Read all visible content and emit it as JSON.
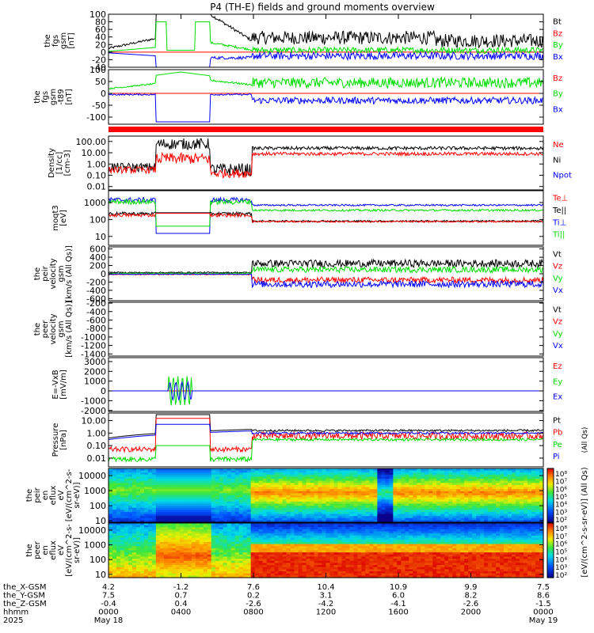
{
  "title": "P4 (TH-E) fields and ground moments overview",
  "colors": {
    "black": "#000000",
    "red": "#ff0000",
    "green": "#00dd00",
    "blue": "#0000ff"
  },
  "chart_data": {
    "type": "line",
    "x_axis": {
      "ticks": [
        "0000",
        "0400",
        "0800",
        "1200",
        "1600",
        "2000",
        "0000"
      ],
      "rows": [
        {
          "label": "the_X-GSM",
          "values": [
            "4.2",
            "-1.2",
            "7.6",
            "10.4",
            "10.9",
            "9.9",
            "7.5"
          ]
        },
        {
          "label": "the_Y-GSM",
          "values": [
            "7.5",
            "0.7",
            "0.2",
            "3.1",
            "6.0",
            "8.2",
            "8.6"
          ]
        },
        {
          "label": "the_Z-GSM",
          "values": [
            "-0.4",
            "0.4",
            "-2.6",
            "-4.2",
            "-4.1",
            "-2.6",
            "-1.5"
          ]
        }
      ],
      "hhmm_label": "hhmm",
      "year": "2025",
      "start_date": "May 18",
      "end_date": "May 19"
    },
    "panels": [
      {
        "id": "fgs",
        "ylabel": [
          "the",
          "fgs",
          "gsm",
          "[nT]"
        ],
        "ytick_labels": [
          "100",
          "80",
          "60",
          "40",
          "20",
          "0",
          "-20",
          "-40"
        ],
        "ylim": [
          -40,
          100
        ],
        "scale": "linear",
        "legend": [
          {
            "name": "Bt",
            "color": "#000000"
          },
          {
            "name": "Bz",
            "color": "#ff0000"
          },
          {
            "name": "By",
            "color": "#00dd00"
          },
          {
            "name": "Bx",
            "color": "#0000ff"
          }
        ]
      },
      {
        "id": "fgs-t89",
        "ylabel": [
          "the",
          "fgs",
          "gsm",
          "-t89",
          "[nT]"
        ],
        "ytick_labels": [
          "100",
          "50",
          "0",
          "-50",
          "-100"
        ],
        "ylim": [
          -130,
          100
        ],
        "scale": "linear",
        "legend": [
          {
            "name": "Bz",
            "color": "#ff0000"
          },
          {
            "name": "By",
            "color": "#00dd00"
          },
          {
            "name": "Bx",
            "color": "#0000ff"
          }
        ]
      },
      {
        "id": "density",
        "ylabel": [
          "Density",
          "[1/cc]",
          "[cm-3]"
        ],
        "ytick_labels": [
          "100.00",
          "10.00",
          "1.00",
          "0.10",
          "0.01"
        ],
        "ylim": [
          0.005,
          300
        ],
        "scale": "log",
        "legend": [
          {
            "name": "Ne",
            "color": "#ff0000"
          },
          {
            "name": "Ni",
            "color": "#000000"
          },
          {
            "name": "Npot",
            "color": "#0000ff"
          }
        ]
      },
      {
        "id": "temperature",
        "ylabel": [
          "moqt3",
          "[eV]"
        ],
        "ytick_labels": [
          "1000",
          "100",
          "10"
        ],
        "ylim": [
          3,
          5000
        ],
        "scale": "log",
        "legend": [
          {
            "name": "Te⊥",
            "color": "#ff0000"
          },
          {
            "name": "Te||",
            "color": "#000000"
          },
          {
            "name": "Ti⊥",
            "color": "#0000ff"
          },
          {
            "name": "Ti||",
            "color": "#00dd00"
          }
        ]
      },
      {
        "id": "peir-velocity",
        "ylabel": [
          "the",
          "peir",
          "velocity",
          "gsm",
          "[km/s (All Qs)]"
        ],
        "ytick_labels": [
          "600",
          "400",
          "200",
          "0",
          "-200",
          "-400",
          "-600"
        ],
        "ylim": [
          -650,
          650
        ],
        "scale": "linear",
        "legend": [
          {
            "name": "Vt",
            "color": "#000000"
          },
          {
            "name": "Vz",
            "color": "#ff0000"
          },
          {
            "name": "Vy",
            "color": "#00dd00"
          },
          {
            "name": "Vx",
            "color": "#0000ff"
          }
        ]
      },
      {
        "id": "peer-velocity",
        "ylabel": [
          "the",
          "peer",
          "velocity",
          "gsm",
          "[km/s (All Qs)]"
        ],
        "ytick_labels": [
          "-200",
          "-400",
          "-600",
          "-800",
          "-1000",
          "-1200",
          "-1400"
        ],
        "ylim": [
          -1450,
          -180
        ],
        "scale": "linear",
        "legend": [
          {
            "name": "Vt",
            "color": "#000000"
          },
          {
            "name": "Vz",
            "color": "#ff0000"
          },
          {
            "name": "Vy",
            "color": "#00dd00"
          },
          {
            "name": "Vx",
            "color": "#0000ff"
          }
        ]
      },
      {
        "id": "efield",
        "ylabel": [
          "E=-VxB",
          "[mV/m]"
        ],
        "ytick_labels": [
          "3000",
          "2000",
          "1000",
          "0",
          "-1000",
          "-2000"
        ],
        "ylim": [
          -2100,
          3400
        ],
        "scale": "linear",
        "legend": [
          {
            "name": "Ez",
            "color": "#ff0000"
          },
          {
            "name": "Ey",
            "color": "#00dd00"
          },
          {
            "name": "Ex",
            "color": "#0000ff"
          }
        ]
      },
      {
        "id": "pressure",
        "ylabel": [
          "Pressure",
          "[nPa]"
        ],
        "ytick_labels": [
          "10.00",
          "1.00",
          "0.10",
          "0.01"
        ],
        "ylim": [
          0.002,
          40
        ],
        "scale": "log",
        "legend": [
          {
            "name": "Pt",
            "color": "#000000"
          },
          {
            "name": "Pb",
            "color": "#ff0000"
          },
          {
            "name": "Pe",
            "color": "#00dd00"
          },
          {
            "name": "Pi",
            "color": "#0000ff"
          }
        ],
        "legend_side_note": "(All Qs)"
      },
      {
        "id": "peir-spec",
        "type": "heatmap",
        "ylabel": [
          "the",
          "peir",
          "en",
          "eflux",
          "eV",
          "[eV/(cm^2-s-",
          "sr-eV)]"
        ],
        "ytick_labels": [
          "10000",
          "1000",
          "100",
          "10"
        ],
        "ylim": [
          8,
          30000
        ],
        "scale": "log",
        "colorbar_ticks": [
          "10⁸",
          "10⁷",
          "10⁶",
          "10⁵",
          "10⁴",
          "10³",
          "10²"
        ]
      },
      {
        "id": "peer-spec",
        "type": "heatmap",
        "ylabel": [
          "the",
          "peer",
          "en",
          "eflux",
          "eV",
          "[eV/(cm^2-s-",
          "sr-eV)]"
        ],
        "ytick_labels": [
          "10000",
          "1000",
          "100",
          "10"
        ],
        "ylim": [
          6,
          30000
        ],
        "scale": "log",
        "colorbar_ticks": [
          "10⁸",
          "10⁷",
          "10⁶",
          "10⁵",
          "10⁴",
          "10³",
          "10²"
        ]
      }
    ],
    "colorbar_label": "[eV/(cm^2-s-sr-eV)] (All Qs)"
  }
}
